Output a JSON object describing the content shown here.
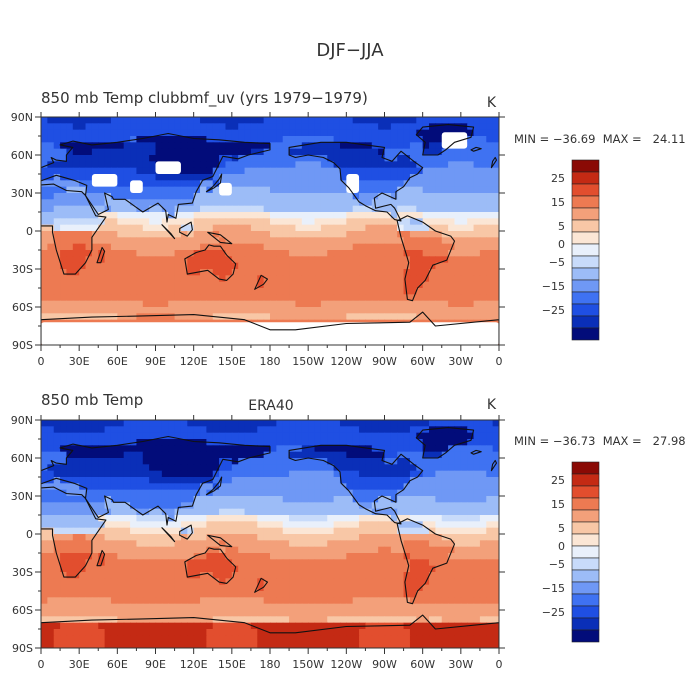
{
  "figure": {
    "title": "DJF−JJA"
  },
  "chart_data": [
    {
      "type": "heatmap",
      "title_left": "850 mb Temp clubbmf_uv (yrs 1979−1979)",
      "title_center": "",
      "units": "K",
      "stats_text": "MIN = −36.69  MAX =   24.11",
      "stats": {
        "min": -36.69,
        "max": 24.11
      },
      "x_ticks": [
        "0",
        "30E",
        "60E",
        "90E",
        "120E",
        "150E",
        "180",
        "150W",
        "120W",
        "90W",
        "60W",
        "30W",
        "0"
      ],
      "y_ticks": [
        "90N",
        "60N",
        "30N",
        "0",
        "30S",
        "60S",
        "90S"
      ],
      "missing_data": true,
      "missing_regions": [
        {
          "lon": [
            70,
            80
          ],
          "lat": [
            30,
            40
          ]
        },
        {
          "lon": [
            40,
            60
          ],
          "lat": [
            35,
            45
          ]
        },
        {
          "lon": [
            90,
            110
          ],
          "lat": [
            45,
            55
          ]
        },
        {
          "lon": [
            140,
            150
          ],
          "lat": [
            28,
            38
          ]
        },
        {
          "lon": [
            240,
            250
          ],
          "lat": [
            30,
            45
          ]
        },
        {
          "lon": [
            315,
            335
          ],
          "lat": [
            65,
            78
          ]
        },
        {
          "lon": [
            0,
            360
          ],
          "lat": [
            -90,
            -72
          ]
        }
      ]
    },
    {
      "type": "heatmap",
      "title_left": "850 mb Temp",
      "title_center": "ERA40",
      "units": "K",
      "stats_text": "MIN = −36.73  MAX =   27.98",
      "stats": {
        "min": -36.73,
        "max": 27.98
      },
      "x_ticks": [
        "0",
        "30E",
        "60E",
        "90E",
        "120E",
        "150E",
        "180",
        "150W",
        "120W",
        "90W",
        "60W",
        "30W",
        "0"
      ],
      "y_ticks": [
        "90N",
        "60N",
        "30N",
        "0",
        "30S",
        "60S",
        "90S"
      ],
      "missing_data": false,
      "missing_regions": []
    }
  ],
  "colorbar": {
    "levels": [
      -30,
      -25,
      -20,
      -15,
      -10,
      -5,
      -2,
      0,
      2,
      5,
      10,
      15,
      20,
      25,
      30
    ],
    "labels": [
      "25",
      "15",
      "5",
      "0",
      "−5",
      "−15",
      "−25"
    ],
    "colors": [
      "#020c7a",
      "#0a2fb8",
      "#1f4fe3",
      "#3f72f2",
      "#6f98f5",
      "#9cbcf7",
      "#c8dbfa",
      "#e9f0fb",
      "#fbe6d5",
      "#f8c7a6",
      "#f3a07a",
      "#ed7a52",
      "#e24e2e",
      "#c42a14",
      "#8a0a05"
    ]
  }
}
